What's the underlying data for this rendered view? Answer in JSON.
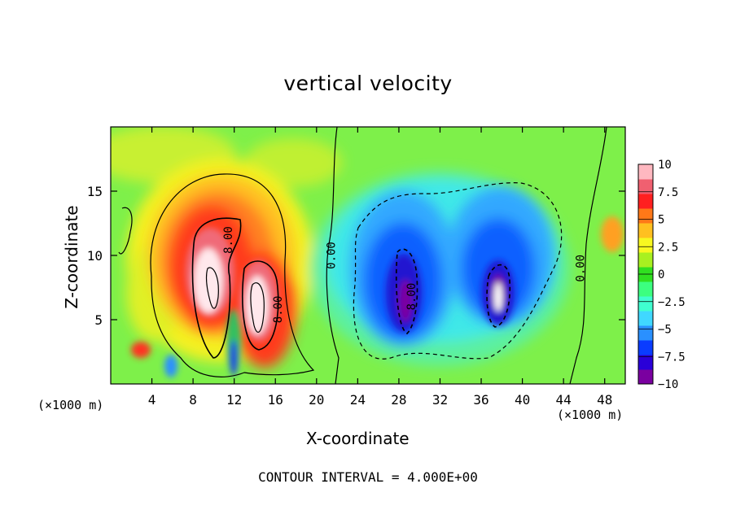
{
  "chart_data": {
    "type": "heatmap",
    "title": "vertical velocity",
    "xlabel": "X-coordinate",
    "ylabel": "Z-coordinate",
    "x_unit_label": "(×1000 m)",
    "xlim": [
      0,
      50
    ],
    "ylim": [
      0,
      20
    ],
    "x_ticks": [
      4,
      8,
      12,
      16,
      20,
      24,
      28,
      32,
      36,
      40,
      44,
      48
    ],
    "y_ticks": [
      5,
      10,
      15
    ],
    "colorbar": {
      "min": -10,
      "max": 10,
      "ticks": [
        10,
        7.5,
        5,
        2.5,
        0,
        -2.5,
        -5,
        -7.5,
        -10
      ],
      "tick_labels": [
        "10",
        "7.5",
        "5",
        "2.5",
        "0",
        "−2.5",
        "−5",
        "−7.5",
        "−10"
      ],
      "colors": [
        "#7a00a0",
        "#2a00d8",
        "#0a3cff",
        "#2a90ff",
        "#40d8ff",
        "#40ffd0",
        "#3cff80",
        "#30e020",
        "#a8f020",
        "#f8f820",
        "#ffc020",
        "#ff7818",
        "#ff2020",
        "#f06070",
        "#ffb8c0"
      ]
    },
    "contour_interval_text": "CONTOUR INTERVAL = 4.000E+00",
    "contour_labels": [
      {
        "text": "8.00",
        "x": 11.8,
        "y": 11.2
      },
      {
        "text": "8.00",
        "x": 16.6,
        "y": 5.8
      },
      {
        "text": "0.00",
        "x": 21.8,
        "y": 10.0
      },
      {
        "text": "8.00",
        "x": 29.6,
        "y": 6.8
      },
      {
        "text": "0.00",
        "x": 46.0,
        "y": 9.0
      }
    ],
    "features": [
      {
        "name": "updraft-core-left",
        "x": 10.0,
        "z": 8.0,
        "value": 10
      },
      {
        "name": "updraft-core-right",
        "x": 14.2,
        "z": 5.8,
        "value": 10
      },
      {
        "name": "downdraft-core-left",
        "x": 29.0,
        "z": 7.0,
        "value": -10
      },
      {
        "name": "downdraft-core-right",
        "x": 37.8,
        "z": 7.0,
        "value": -10
      }
    ]
  }
}
